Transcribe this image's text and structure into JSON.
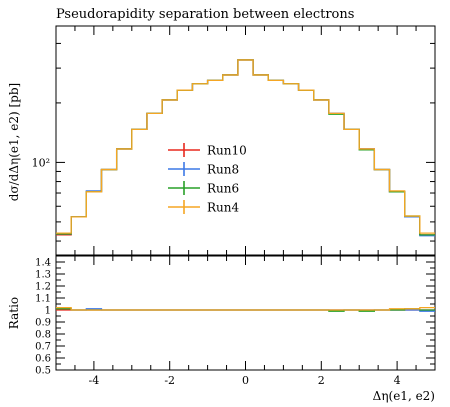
{
  "chart_data": {
    "type": "histogram",
    "title": "Pseudorapidity separation between electrons",
    "ylabel": "dσ/dΔη(e1, e2) [pb]",
    "xlabel": "Δη(e1, e2)",
    "ratio_label": "Ratio",
    "y_scale": "log",
    "ylim": [
      34,
      490
    ],
    "y_ticks": [
      {
        "value": 100,
        "label": "10²"
      }
    ],
    "xlim": [
      -5,
      5
    ],
    "x_ticks": [
      {
        "value": -4,
        "label": "-4"
      },
      {
        "value": -2,
        "label": "-2"
      },
      {
        "value": 0,
        "label": "0"
      },
      {
        "value": 2,
        "label": "2"
      },
      {
        "value": 4,
        "label": "4"
      }
    ],
    "ratio_ylim": [
      0.5,
      1.45
    ],
    "ratio_ticks": [
      "0.5",
      "0.6",
      "0.7",
      "0.8",
      "0.9",
      "1",
      "1.1",
      "1.2",
      "1.3",
      "1.4"
    ],
    "ratio_tick_values": [
      0.5,
      0.6,
      0.7,
      0.8,
      0.9,
      1.0,
      1.1,
      1.2,
      1.3,
      1.4
    ],
    "bin_edges": [
      -5.0,
      -4.6,
      -4.2,
      -3.8,
      -3.4,
      -3.0,
      -2.6,
      -2.2,
      -1.8,
      -1.4,
      -1.0,
      -0.6,
      -0.2,
      0.2,
      0.6,
      1.0,
      1.4,
      1.8,
      2.2,
      2.6,
      3.0,
      3.4,
      3.8,
      4.2,
      4.6,
      5.0
    ],
    "reference_values": [
      43,
      53,
      71,
      92,
      117,
      147,
      177,
      207,
      232,
      250,
      260,
      277,
      330,
      277,
      260,
      250,
      232,
      207,
      177,
      147,
      117,
      92,
      71,
      53,
      43
    ],
    "legend_position": "center-left",
    "series": [
      {
        "name": "Run10",
        "color": "#e8281e",
        "ratio": [
          1.0,
          1.0,
          1.0,
          1.0,
          1.0,
          1.0,
          1.0,
          1.0,
          1.0,
          1.0,
          1.0,
          1.0,
          1.0,
          1.0,
          1.0,
          1.0,
          1.0,
          1.0,
          1.0,
          1.0,
          1.0,
          1.0,
          1.0,
          1.0,
          1.0
        ]
      },
      {
        "name": "Run8",
        "color": "#3c78e6",
        "ratio": [
          1.01,
          1.0,
          1.01,
          1.0,
          1.0,
          1.0,
          1.0,
          1.0,
          1.0,
          1.0,
          1.0,
          1.0,
          1.0,
          1.0,
          1.0,
          1.0,
          1.0,
          1.0,
          1.0,
          1.0,
          1.0,
          1.0,
          1.0,
          1.0,
          0.99
        ]
      },
      {
        "name": "Run6",
        "color": "#28a028",
        "ratio": [
          1.01,
          1.0,
          1.0,
          1.0,
          1.0,
          1.0,
          1.0,
          1.0,
          1.0,
          1.0,
          1.0,
          1.0,
          1.0,
          1.0,
          1.0,
          1.0,
          1.0,
          1.0,
          0.99,
          1.0,
          0.99,
          1.0,
          1.0,
          1.01,
          1.0
        ]
      },
      {
        "name": "Run4",
        "color": "#f5a623",
        "ratio": [
          1.02,
          1.0,
          1.0,
          1.0,
          1.0,
          1.0,
          1.0,
          1.0,
          1.0,
          1.0,
          1.0,
          1.0,
          1.0,
          1.0,
          1.0,
          1.0,
          1.0,
          1.0,
          1.0,
          1.0,
          1.0,
          1.0,
          1.01,
          1.01,
          1.02
        ]
      }
    ]
  }
}
